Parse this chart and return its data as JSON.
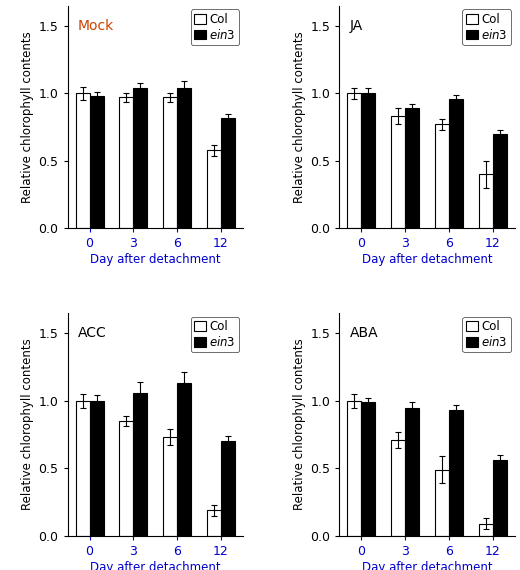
{
  "panels": [
    {
      "label": "Mock",
      "label_color": "#cc4400",
      "days": [
        0,
        3,
        6,
        12
      ],
      "col_means": [
        1.0,
        0.97,
        0.97,
        0.58
      ],
      "col_errors": [
        0.05,
        0.03,
        0.03,
        0.04
      ],
      "ein3_means": [
        0.98,
        1.04,
        1.04,
        0.82
      ],
      "ein3_errors": [
        0.03,
        0.04,
        0.05,
        0.03
      ]
    },
    {
      "label": "JA",
      "label_color": "#000000",
      "days": [
        0,
        3,
        6,
        12
      ],
      "col_means": [
        1.0,
        0.83,
        0.77,
        0.4
      ],
      "col_errors": [
        0.04,
        0.06,
        0.04,
        0.1
      ],
      "ein3_means": [
        1.0,
        0.89,
        0.96,
        0.7
      ],
      "ein3_errors": [
        0.04,
        0.03,
        0.03,
        0.03
      ]
    },
    {
      "label": "ACC",
      "label_color": "#000000",
      "days": [
        0,
        3,
        6,
        12
      ],
      "col_means": [
        1.0,
        0.85,
        0.73,
        0.19
      ],
      "col_errors": [
        0.05,
        0.04,
        0.06,
        0.04
      ],
      "ein3_means": [
        1.0,
        1.06,
        1.13,
        0.7
      ],
      "ein3_errors": [
        0.04,
        0.08,
        0.08,
        0.04
      ]
    },
    {
      "label": "ABA",
      "label_color": "#000000",
      "days": [
        0,
        3,
        6,
        12
      ],
      "col_means": [
        1.0,
        0.71,
        0.49,
        0.09
      ],
      "col_errors": [
        0.05,
        0.06,
        0.1,
        0.04
      ],
      "ein3_means": [
        0.99,
        0.95,
        0.93,
        0.56
      ],
      "ein3_errors": [
        0.03,
        0.04,
        0.04,
        0.04
      ]
    }
  ],
  "ylabel": "Relative chlorophyll contents",
  "xlabel": "Day after detachment",
  "ylim": [
    0,
    1.65
  ],
  "yticks": [
    0,
    0.5,
    1.0,
    1.5
  ],
  "bar_width": 0.32,
  "col_color": "white",
  "ein3_color": "black",
  "col_edgecolor": "black",
  "ein3_edgecolor": "black",
  "legend_col_label": "Col",
  "legend_ein3_label": "ein3",
  "tick_color": "#0000cc",
  "label_fontsize": 8.5,
  "tick_fontsize": 9,
  "legend_fontsize": 8.5,
  "panel_label_fontsize": 10
}
